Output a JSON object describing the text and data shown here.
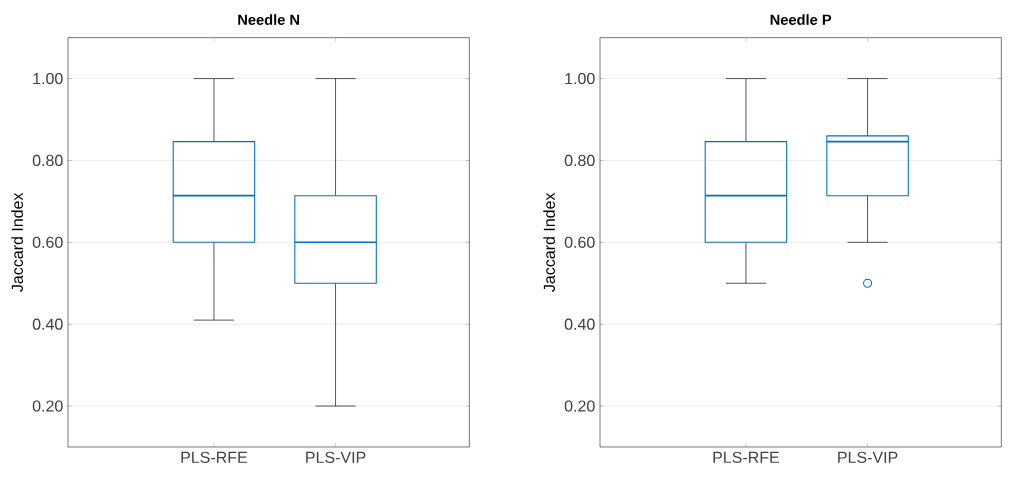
{
  "chart_data": [
    {
      "type": "box",
      "title": "Needle N",
      "ylabel": "Jaccard Index",
      "categories": [
        "PLS-RFE",
        "PLS-VIP"
      ],
      "color": "#0072bd",
      "boxes": [
        {
          "low": 0.41,
          "q1": 0.6,
          "median": 0.714,
          "q3": 0.846,
          "high": 1.0
        },
        {
          "low": 0.2,
          "q1": 0.5,
          "median": 0.6,
          "q3": 0.714,
          "high": 1.0
        }
      ],
      "ylim": [
        0.1,
        1.1
      ],
      "yticks": [
        {
          "value": 0.2,
          "label": "0.20"
        },
        {
          "value": 0.4,
          "label": "0.40"
        },
        {
          "value": 0.6,
          "label": "0.60"
        },
        {
          "value": 0.8,
          "label": "0.80"
        },
        {
          "value": 1.0,
          "label": "1.00"
        }
      ],
      "grid": "y"
    },
    {
      "type": "box",
      "title": "Needle P",
      "ylabel": "Jaccard Index",
      "categories": [
        "PLS-RFE",
        "PLS-VIP"
      ],
      "color": "#0072bd",
      "boxes": [
        {
          "low": 0.5,
          "q1": 0.6,
          "median": 0.714,
          "q3": 0.846,
          "high": 1.0
        },
        {
          "low": 0.6,
          "q1": 0.714,
          "median": 0.846,
          "q3": 0.86,
          "high": 1.0,
          "outliers": [
            0.5
          ]
        }
      ],
      "ylim": [
        0.1,
        1.1
      ],
      "yticks": [
        {
          "value": 0.2,
          "label": "0.20"
        },
        {
          "value": 0.4,
          "label": "0.40"
        },
        {
          "value": 0.6,
          "label": "0.60"
        },
        {
          "value": 0.8,
          "label": "0.80"
        },
        {
          "value": 1.0,
          "label": "1.00"
        }
      ],
      "grid": "y"
    }
  ]
}
